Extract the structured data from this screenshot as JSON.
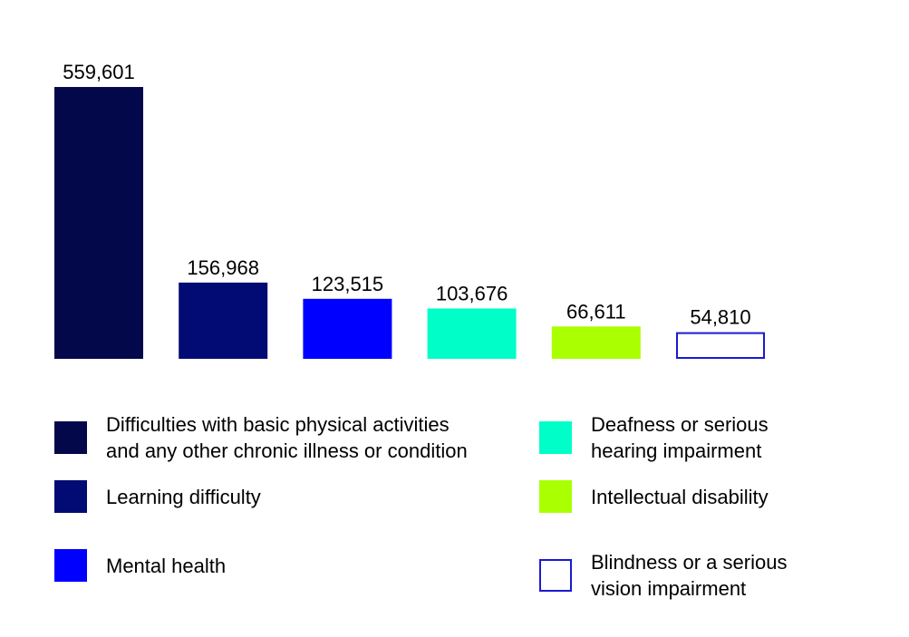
{
  "chart_data": {
    "type": "bar",
    "title": "",
    "xlabel": "",
    "ylabel": "",
    "ylim": [
      0,
      559601
    ],
    "grid": false,
    "legend_position": "bottom",
    "categories": [
      "Difficulties with basic physical activities\nand any other chronic illness or condition",
      "Learning difficulty",
      "Mental health",
      "Deafness or serious\nhearing impairment",
      "Intellectual disability",
      "Blindness or a serious\nvision impairment"
    ],
    "values": [
      559601,
      156968,
      123515,
      103676,
      66611,
      54810
    ],
    "value_labels": [
      "559,601",
      "156,968",
      "123,515",
      "103,676",
      "66,611",
      "54,810"
    ],
    "colors": [
      "#03084a",
      "#020b74",
      "#0000ff",
      "#00ffc8",
      "#aaff00",
      "#ffffff"
    ],
    "outline_colors": [
      "#03084a",
      "#020b74",
      "#0000ff",
      "#00ffc8",
      "#aaff00",
      "#1a1ad2"
    ]
  }
}
